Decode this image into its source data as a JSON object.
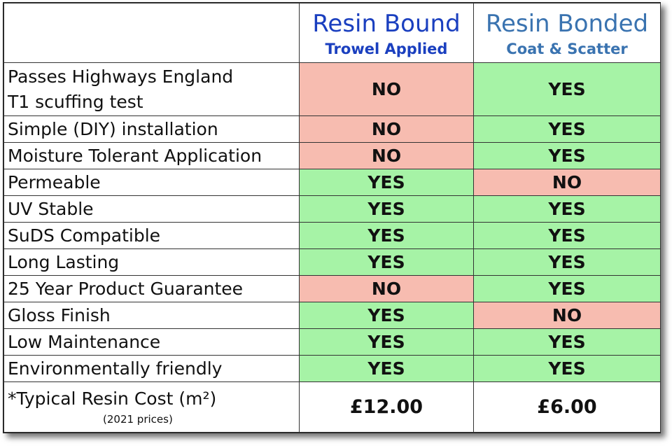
{
  "header": {
    "col_a": {
      "title": "Resin Bound",
      "subtitle": "Trowel Applied",
      "color": "#1a3fbf"
    },
    "col_b": {
      "title": "Resin Bonded",
      "subtitle": "Coat & Scatter",
      "color": "#3a73b0"
    }
  },
  "colors": {
    "yes": "#a6f3a6",
    "no": "#f7bcb0"
  },
  "rows": [
    {
      "label_line1": "Passes Highways England",
      "label_line2": "T1 scuffing test",
      "a": "NO",
      "b": "YES"
    },
    {
      "label": "Simple (DIY) installation",
      "a": "NO",
      "b": "YES"
    },
    {
      "label": "Moisture Tolerant Application",
      "a": "NO",
      "b": "YES"
    },
    {
      "label": "Permeable",
      "a": "YES",
      "b": "NO"
    },
    {
      "label": "UV Stable",
      "a": "YES",
      "b": "YES"
    },
    {
      "label": "SuDS Compatible",
      "a": "YES",
      "b": "YES"
    },
    {
      "label": "Long Lasting",
      "a": "YES",
      "b": "YES"
    },
    {
      "label": "25 Year Product Guarantee",
      "a": "NO",
      "b": "YES"
    },
    {
      "label": "Gloss Finish",
      "a": "YES",
      "b": "NO"
    },
    {
      "label": "Low Maintenance",
      "a": "YES",
      "b": "YES"
    },
    {
      "label": "Environmentally friendly",
      "a": "YES",
      "b": "YES"
    }
  ],
  "cost": {
    "label": "*Typical Resin Cost (m²)",
    "note": "(2021  prices)",
    "a": "£12.00",
    "b": "£6.00"
  }
}
